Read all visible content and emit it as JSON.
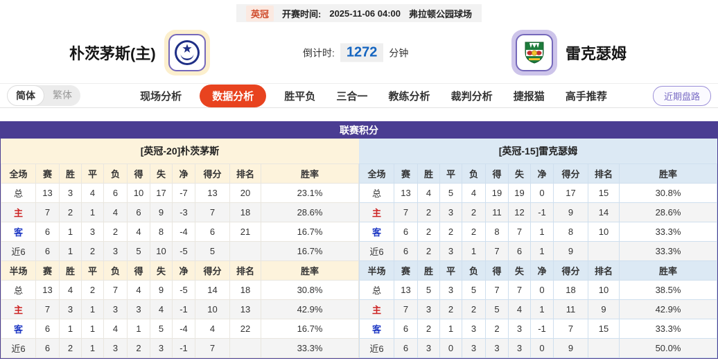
{
  "top_bar": {
    "league_badge": "英冠",
    "kickoff_label": "开赛时间:",
    "kickoff_time": "2025-11-06 04:00",
    "venue": "弗拉顿公园球场"
  },
  "header": {
    "home_team": "朴茨茅斯(主)",
    "away_team": "雷克瑟姆",
    "countdown_label": "倒计时:",
    "countdown_value": "1272",
    "countdown_unit": "分钟"
  },
  "nav": {
    "lang": [
      "简体",
      "繁体"
    ],
    "active_lang": "简体",
    "items": [
      "现场分析",
      "数据分析",
      "胜平负",
      "三合一",
      "教练分析",
      "裁判分析",
      "捷报猫",
      "高手推荐"
    ],
    "active_item": "数据分析",
    "right_button": "近期盘路"
  },
  "league_table": {
    "title": "联赛积分",
    "teams": [
      {
        "header": "[英冠-20]朴茨茅斯",
        "sections": [
          {
            "columns": [
              "全场",
              "赛",
              "胜",
              "平",
              "负",
              "得",
              "失",
              "净",
              "得分",
              "排名",
              "胜率"
            ],
            "rows": [
              {
                "label": "总",
                "label_class": "",
                "cells": [
                  "13",
                  "3",
                  "4",
                  "6",
                  "10",
                  "17",
                  "-7",
                  "13",
                  "20",
                  "23.1%"
                ]
              },
              {
                "label": "主",
                "label_class": "red",
                "cells": [
                  "7",
                  "2",
                  "1",
                  "4",
                  "6",
                  "9",
                  "-3",
                  "7",
                  "18",
                  "28.6%"
                ]
              },
              {
                "label": "客",
                "label_class": "blue",
                "cells": [
                  "6",
                  "1",
                  "3",
                  "2",
                  "4",
                  "8",
                  "-4",
                  "6",
                  "21",
                  "16.7%"
                ]
              },
              {
                "label": "近6",
                "label_class": "",
                "cells": [
                  "6",
                  "1",
                  "2",
                  "3",
                  "5",
                  "10",
                  "-5",
                  "5",
                  "",
                  "16.7%"
                ]
              }
            ]
          },
          {
            "columns": [
              "半场",
              "赛",
              "胜",
              "平",
              "负",
              "得",
              "失",
              "净",
              "得分",
              "排名",
              "胜率"
            ],
            "rows": [
              {
                "label": "总",
                "label_class": "",
                "cells": [
                  "13",
                  "4",
                  "2",
                  "7",
                  "4",
                  "9",
                  "-5",
                  "14",
                  "18",
                  "30.8%"
                ]
              },
              {
                "label": "主",
                "label_class": "red",
                "cells": [
                  "7",
                  "3",
                  "1",
                  "3",
                  "3",
                  "4",
                  "-1",
                  "10",
                  "13",
                  "42.9%"
                ]
              },
              {
                "label": "客",
                "label_class": "blue",
                "cells": [
                  "6",
                  "1",
                  "1",
                  "4",
                  "1",
                  "5",
                  "-4",
                  "4",
                  "22",
                  "16.7%"
                ]
              },
              {
                "label": "近6",
                "label_class": "",
                "cells": [
                  "6",
                  "2",
                  "1",
                  "3",
                  "2",
                  "3",
                  "-1",
                  "7",
                  "",
                  "33.3%"
                ]
              }
            ]
          }
        ]
      },
      {
        "header": "[英冠-15]雷克瑟姆",
        "sections": [
          {
            "columns": [
              "全场",
              "赛",
              "胜",
              "平",
              "负",
              "得",
              "失",
              "净",
              "得分",
              "排名",
              "胜率"
            ],
            "rows": [
              {
                "label": "总",
                "label_class": "",
                "cells": [
                  "13",
                  "4",
                  "5",
                  "4",
                  "19",
                  "19",
                  "0",
                  "17",
                  "15",
                  "30.8%"
                ]
              },
              {
                "label": "主",
                "label_class": "red",
                "cells": [
                  "7",
                  "2",
                  "3",
                  "2",
                  "11",
                  "12",
                  "-1",
                  "9",
                  "14",
                  "28.6%"
                ]
              },
              {
                "label": "客",
                "label_class": "blue",
                "cells": [
                  "6",
                  "2",
                  "2",
                  "2",
                  "8",
                  "7",
                  "1",
                  "8",
                  "10",
                  "33.3%"
                ]
              },
              {
                "label": "近6",
                "label_class": "",
                "cells": [
                  "6",
                  "2",
                  "3",
                  "1",
                  "7",
                  "6",
                  "1",
                  "9",
                  "",
                  "33.3%"
                ]
              }
            ]
          },
          {
            "columns": [
              "半场",
              "赛",
              "胜",
              "平",
              "负",
              "得",
              "失",
              "净",
              "得分",
              "排名",
              "胜率"
            ],
            "rows": [
              {
                "label": "总",
                "label_class": "",
                "cells": [
                  "13",
                  "5",
                  "3",
                  "5",
                  "7",
                  "7",
                  "0",
                  "18",
                  "10",
                  "38.5%"
                ]
              },
              {
                "label": "主",
                "label_class": "red",
                "cells": [
                  "7",
                  "3",
                  "2",
                  "2",
                  "5",
                  "4",
                  "1",
                  "11",
                  "9",
                  "42.9%"
                ]
              },
              {
                "label": "客",
                "label_class": "blue",
                "cells": [
                  "6",
                  "2",
                  "1",
                  "3",
                  "2",
                  "3",
                  "-1",
                  "7",
                  "15",
                  "33.3%"
                ]
              },
              {
                "label": "近6",
                "label_class": "",
                "cells": [
                  "6",
                  "3",
                  "0",
                  "3",
                  "3",
                  "3",
                  "0",
                  "9",
                  "",
                  "50.0%"
                ]
              }
            ]
          }
        ]
      }
    ]
  },
  "colors": {
    "table_header_purple": "#4a3d92",
    "nav_active_red": "#e8431f",
    "home_theme_cream": "#fdf3dc",
    "away_theme_blue": "#dce9f4",
    "home_label_red": "#cc2222",
    "away_label_blue": "#1f39c4",
    "countdown_blue": "#1565c0",
    "league_badge_red": "#cf4a2a"
  }
}
